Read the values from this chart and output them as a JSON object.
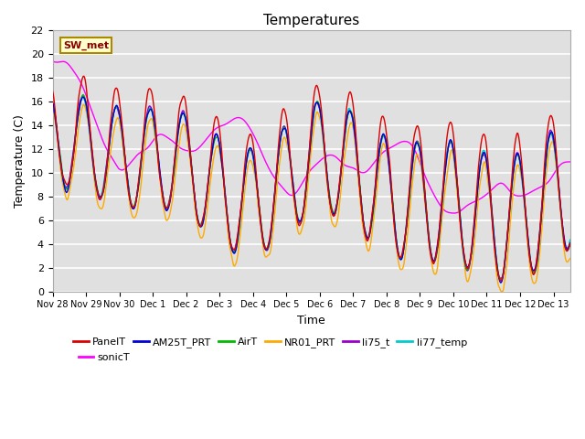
{
  "title": "Temperatures",
  "xlabel": "Time",
  "ylabel": "Temperature (C)",
  "ylim": [
    0,
    22
  ],
  "yticks": [
    0,
    2,
    4,
    6,
    8,
    10,
    12,
    14,
    16,
    18,
    20,
    22
  ],
  "background_color": "#ffffff",
  "plot_bg_color": "#e0e0e0",
  "grid_color": "#ffffff",
  "subtitle_text": "SW_met",
  "subtitle_bg": "#ffffcc",
  "subtitle_border": "#aa8800",
  "legend": [
    {
      "label": "PanelT",
      "color": "#dd0000"
    },
    {
      "label": "AM25T_PRT",
      "color": "#0000dd"
    },
    {
      "label": "AirT",
      "color": "#00bb00"
    },
    {
      "label": "NR01_PRT",
      "color": "#ffaa00"
    },
    {
      "label": "li75_t",
      "color": "#9900cc"
    },
    {
      "label": "li77_temp",
      "color": "#00cccc"
    },
    {
      "label": "sonicT",
      "color": "#ff00ff"
    }
  ],
  "x_tick_labels": [
    "Nov 28",
    "Nov 29",
    "Nov 30",
    "Dec 1",
    "Dec 2",
    "Dec 3",
    "Dec 4",
    "Dec 5",
    "Dec 6",
    "Dec 7",
    "Dec 8",
    "Dec 9",
    "Dec 10",
    "Dec 11",
    "Dec 12",
    "Dec 13"
  ],
  "n_days": 15.5
}
